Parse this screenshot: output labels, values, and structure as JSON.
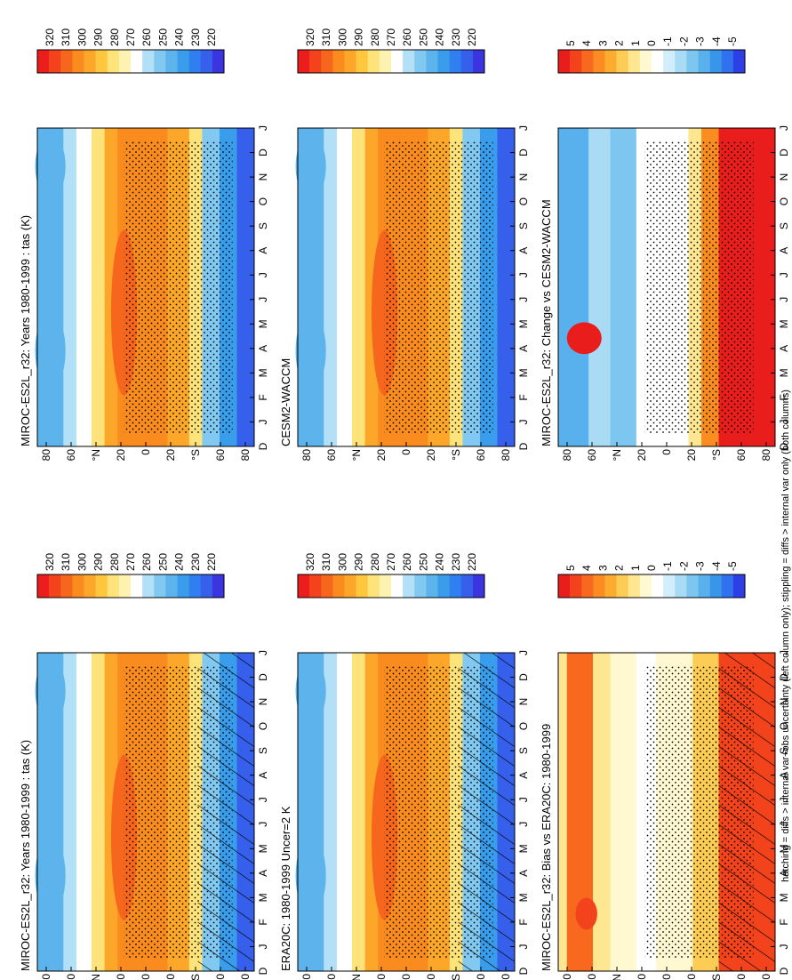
{
  "footer_note": "hatching = diffs > internal var+obs uncertainty (left column only); stippling = diffs > internal var only (both columns)",
  "colors": {
    "abs_scale": [
      "#ee1d1d",
      "#f4421c",
      "#f7661d",
      "#f98b1f",
      "#fca72a",
      "#fec73d",
      "#fee27a",
      "#fef2b0",
      "#ffffff",
      "#b2e0f7",
      "#82c9f1",
      "#5db4ec",
      "#3a9deb",
      "#2f7ff0",
      "#3660ec",
      "#3a35e0"
    ],
    "diff_scale": [
      "#ea1d1d",
      "#f3431c",
      "#f8681e",
      "#fb8c22",
      "#fcad30",
      "#fdcc55",
      "#fee790",
      "#fff8d0",
      "#ffffff",
      "#d3eefb",
      "#a9dbf5",
      "#7dc6f0",
      "#58b0ec",
      "#3895ea",
      "#2f71ee",
      "#2f3fe6"
    ]
  },
  "chart_data": [
    {
      "type": "heatmap",
      "title": "MIROC-ES2L_r32: Years 1980-1999 : tas (K)",
      "x_ticks": [
        "D",
        "J",
        "F",
        "M",
        "A",
        "M",
        "J",
        "J",
        "A",
        "S",
        "O",
        "N",
        "D",
        "J"
      ],
      "y_ticks": [
        "80",
        "60",
        "°N",
        "20",
        "0",
        "20",
        "°S",
        "60",
        "80"
      ],
      "colorbar": {
        "labels": [
          "320",
          "310",
          "300",
          "290",
          "280",
          "270",
          "260",
          "250",
          "240",
          "230",
          "220"
        ],
        "range": [
          215,
          325
        ],
        "step": 10
      },
      "hatching": true,
      "stippling": true
    },
    {
      "type": "heatmap",
      "title": "MIROC-ES2L_r32: Years 1980-1999 : tas (K)",
      "x_ticks": [
        "D",
        "J",
        "F",
        "M",
        "A",
        "M",
        "J",
        "J",
        "A",
        "S",
        "O",
        "N",
        "D",
        "J"
      ],
      "y_ticks": [
        "80",
        "60",
        "°N",
        "20",
        "0",
        "20",
        "°S",
        "60",
        "80"
      ],
      "colorbar": {
        "labels": [
          "320",
          "310",
          "300",
          "290",
          "280",
          "270",
          "260",
          "250",
          "240",
          "230",
          "220"
        ],
        "range": [
          215,
          325
        ],
        "step": 10
      },
      "hatching": false,
      "stippling": true
    },
    {
      "type": "heatmap",
      "title": "ERA20C: 1980-1999 Uncer=2 K",
      "x_ticks": [
        "D",
        "J",
        "F",
        "M",
        "A",
        "M",
        "J",
        "J",
        "A",
        "S",
        "O",
        "N",
        "D",
        "J"
      ],
      "y_ticks": [
        "80",
        "60",
        "°N",
        "20",
        "0",
        "20",
        "°S",
        "60",
        "80"
      ],
      "colorbar": {
        "labels": [
          "320",
          "310",
          "300",
          "290",
          "280",
          "270",
          "260",
          "250",
          "240",
          "230",
          "220"
        ],
        "range": [
          215,
          325
        ],
        "step": 10
      },
      "hatching": true,
      "stippling": true
    },
    {
      "type": "heatmap",
      "title": "CESM2-WACCM",
      "x_ticks": [
        "D",
        "J",
        "F",
        "M",
        "A",
        "M",
        "J",
        "J",
        "A",
        "S",
        "O",
        "N",
        "D",
        "J"
      ],
      "y_ticks": [
        "80",
        "60",
        "°N",
        "20",
        "0",
        "20",
        "°S",
        "60",
        "80"
      ],
      "colorbar": {
        "labels": [
          "320",
          "310",
          "300",
          "290",
          "280",
          "270",
          "260",
          "250",
          "240",
          "230",
          "220"
        ],
        "range": [
          215,
          325
        ],
        "step": 10
      },
      "hatching": false,
      "stippling": true
    },
    {
      "type": "heatmap",
      "title": "MIROC-ES2L_r32: Bias vs ERA20C: 1980-1999",
      "x_ticks": [
        "D",
        "J",
        "F",
        "M",
        "A",
        "M",
        "J",
        "J",
        "A",
        "S",
        "O",
        "N",
        "D",
        "J"
      ],
      "y_ticks": [
        "80",
        "60",
        "°N",
        "20",
        "0",
        "20",
        "°S",
        "60",
        "80"
      ],
      "colorbar": {
        "labels": [
          "5",
          "4",
          "3",
          "2",
          "1",
          "0",
          "-1",
          "-2",
          "-3",
          "-4",
          "-5"
        ],
        "range": [
          -5.5,
          5.5
        ],
        "step": 1
      },
      "hatching": true,
      "stippling": true
    },
    {
      "type": "heatmap",
      "title": "MIROC-ES2L_r32: Change vs CESM2-WACCM",
      "x_ticks": [
        "D",
        "J",
        "F",
        "M",
        "A",
        "M",
        "J",
        "J",
        "A",
        "S",
        "O",
        "N",
        "D",
        "J"
      ],
      "y_ticks": [
        "80",
        "60",
        "°N",
        "20",
        "0",
        "20",
        "°S",
        "60",
        "80"
      ],
      "colorbar": {
        "labels": [
          "5",
          "4",
          "3",
          "2",
          "1",
          "0",
          "-1",
          "-2",
          "-3",
          "-4",
          "-5"
        ],
        "range": [
          -5.5,
          5.5
        ],
        "step": 1
      },
      "hatching": false,
      "stippling": true
    }
  ]
}
